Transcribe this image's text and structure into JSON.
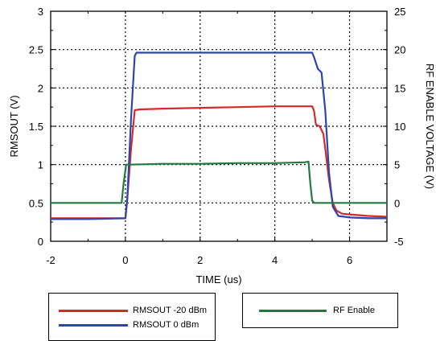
{
  "chart_data": {
    "type": "line",
    "title": "",
    "xlabel": "TIME (us)",
    "ylabel": "RMSOUT (V)",
    "y2label": "RF ENABLE VOLTAGE (V)",
    "xlim": [
      -2,
      7
    ],
    "ylim": [
      0,
      3
    ],
    "y2lim": [
      -5,
      25
    ],
    "xticks": [
      "-2",
      "0",
      "2",
      "4",
      "6"
    ],
    "yticks": [
      "0",
      "0.5",
      "1",
      "1.5",
      "2",
      "2.5",
      "3"
    ],
    "y2ticks": [
      "-5",
      "0",
      "5",
      "10",
      "15",
      "20",
      "25"
    ],
    "grid": true,
    "grid_style": "dotted",
    "series": [
      {
        "name": "RMSOUT -20 dBm",
        "axis": "left",
        "color": "#d42a2a",
        "x": [
          -2,
          -1,
          0,
          0.05,
          0.15,
          0.25,
          0.4,
          1,
          2,
          3,
          4,
          5,
          5.05,
          5.1,
          5.2,
          5.3,
          5.35,
          5.45,
          5.55,
          5.65,
          5.8,
          6,
          6.5,
          7
        ],
        "y": [
          0.3,
          0.3,
          0.3,
          0.55,
          1.2,
          1.71,
          1.72,
          1.73,
          1.74,
          1.75,
          1.76,
          1.76,
          1.7,
          1.52,
          1.5,
          1.4,
          1.2,
          0.8,
          0.5,
          0.4,
          0.36,
          0.35,
          0.33,
          0.32
        ]
      },
      {
        "name": "RMSOUT 0 dBm",
        "axis": "left",
        "color": "#2c45b0",
        "x": [
          -2,
          -1,
          0,
          0.05,
          0.15,
          0.25,
          0.3,
          1,
          2,
          3,
          4,
          5,
          5.05,
          5.15,
          5.25,
          5.35,
          5.45,
          5.55,
          5.7,
          6,
          6.5,
          7
        ],
        "y": [
          0.29,
          0.29,
          0.3,
          0.55,
          1.6,
          2.42,
          2.46,
          2.46,
          2.46,
          2.46,
          2.46,
          2.46,
          2.4,
          2.25,
          2.2,
          1.7,
          0.9,
          0.45,
          0.33,
          0.31,
          0.3,
          0.3
        ]
      },
      {
        "name": "RF Enable",
        "axis": "right",
        "color": "#237a3e",
        "x": [
          -2,
          -1,
          -0.1,
          -0.05,
          0.02,
          0.1,
          1,
          2,
          3,
          4,
          4.8,
          4.9,
          4.95,
          5.0,
          5.05,
          6,
          7
        ],
        "y": [
          0,
          0,
          0,
          2.5,
          5,
          5,
          5.1,
          5.1,
          5.2,
          5.2,
          5.3,
          5.4,
          2.5,
          0.3,
          0,
          0,
          0
        ]
      }
    ]
  },
  "legend": {
    "left": [
      {
        "label": "RMSOUT -20 dBm",
        "color": "#d42a2a"
      },
      {
        "label": "RMSOUT 0 dBm",
        "color": "#2c45b0"
      }
    ],
    "right": [
      {
        "label": "RF Enable",
        "color": "#237a3e"
      }
    ]
  }
}
